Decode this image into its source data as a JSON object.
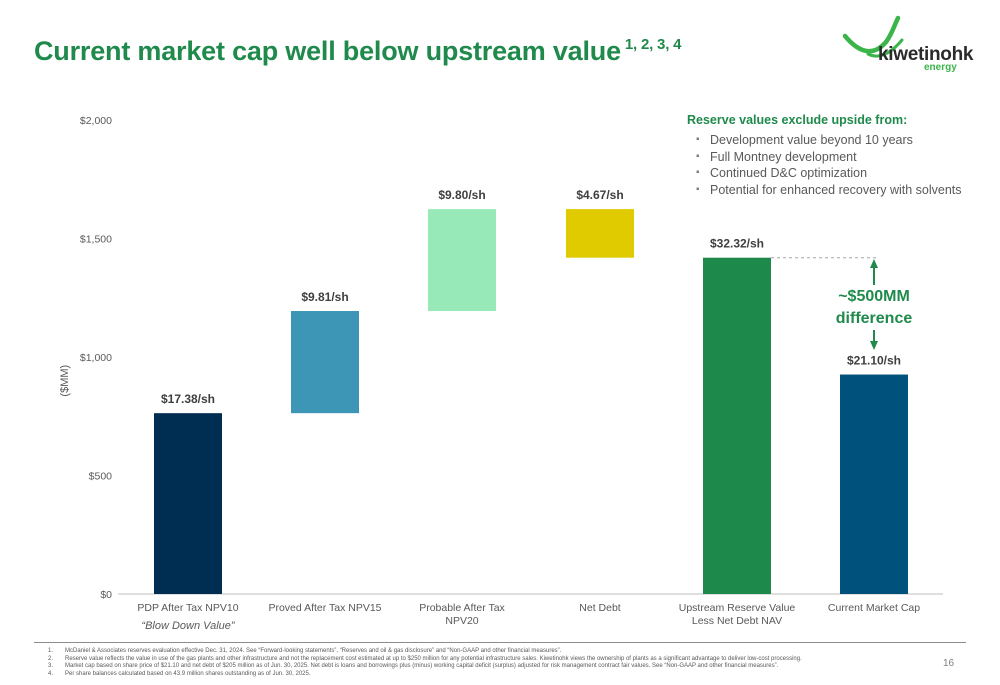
{
  "slide": {
    "title": "Current market cap well below upstream value",
    "title_superscript": "1, 2, 3, 4",
    "page_number": "16"
  },
  "logo": {
    "name": "kiwetinohk",
    "sub": "energy"
  },
  "callout": {
    "heading": "Reserve values exclude upside from:",
    "items": [
      "Development value beyond 10 years",
      "Full Montney development",
      "Continued D&C optimization",
      "Potential for enhanced recovery with solvents"
    ]
  },
  "difference": {
    "line1": "~$500MM",
    "line2": "difference"
  },
  "chart_data": {
    "type": "bar",
    "subtype": "waterfall",
    "ylabel": "($MM)",
    "ylim": [
      0,
      2000
    ],
    "yticks": [
      0,
      500,
      1000,
      1500,
      2000
    ],
    "ytick_labels": [
      "$0",
      "$500",
      "$1,000",
      "$1,500",
      "$2,000"
    ],
    "grid": false,
    "categories": [
      "PDP After Tax NPV10",
      "Proved After Tax NPV15",
      "Probable After Tax NPV20",
      "Net Debt",
      "Upstream Reserve Value Less Net Debt NAV",
      "Current Market Cap"
    ],
    "bars": [
      {
        "base": 0,
        "top": 763,
        "label": "$17.38/sh",
        "color": "#002d52"
      },
      {
        "base": 763,
        "top": 1194,
        "label": "$9.81/sh",
        "color": "#3d96b6"
      },
      {
        "base": 1194,
        "top": 1624,
        "label": "$9.80/sh",
        "color": "#97e9b7"
      },
      {
        "base": 1419,
        "top": 1624,
        "label": "$4.67/sh",
        "color": "#dfcb00"
      },
      {
        "base": 0,
        "top": 1419,
        "label": "$32.32/sh",
        "color": "#1d8a4b"
      },
      {
        "base": 0,
        "top": 926,
        "label": "$21.10/sh",
        "color": "#00527d"
      }
    ],
    "annotation": "“Blow Down Value”",
    "annotation_category": "PDP After Tax NPV10"
  },
  "footnotes": [
    {
      "num": "1.",
      "text": "McDaniel & Associates reserves evaluation effective Dec. 31, 2024. See “Forward-looking statements”, “Reserves and oil & gas disclosure” and “Non-GAAP and other financial measures”."
    },
    {
      "num": "2.",
      "text": "Reserve value reflects the value in use of the gas plants and other infrastructure and not the replacement cost estimated at up to $250 million for any potential infrastructure sales. Kiwetinohk views the ownership of plants as a significant advantage to deliver low-cost processing."
    },
    {
      "num": "3.",
      "text": "Market cap based on share price of $21.10 and net debt of $205 million as of Jun. 30, 2025. Net debt is loans and borrowings plus (minus) working capital deficit (surplus) adjusted for risk management contract fair values. See “Non-GAAP and other financial measures”."
    },
    {
      "num": "4.",
      "text": "Per share balances calculated based on 43.9 million shares outstanding as of Jun. 30, 2025."
    }
  ]
}
